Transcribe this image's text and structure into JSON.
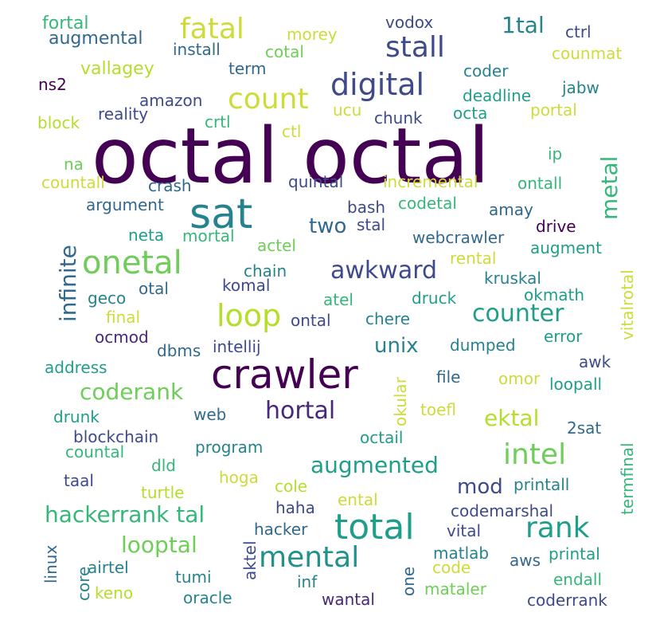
{
  "wordcloud": {
    "background": "#ffffff",
    "palette": [
      "#440154",
      "#482878",
      "#3e4a89",
      "#31688e",
      "#26828e",
      "#1f9e89",
      "#35b779",
      "#6ece58",
      "#b5de2b",
      "#fde725"
    ],
    "words": [
      {
        "text": "octal octal",
        "color": "#440154"
      },
      {
        "text": "crawler",
        "color": "#440154"
      },
      {
        "text": "sat",
        "color": "#26828e"
      },
      {
        "text": "total",
        "color": "#1f9e89"
      },
      {
        "text": "onetal",
        "color": "#6ece58"
      },
      {
        "text": "digital",
        "color": "#3e4a89"
      },
      {
        "text": "count",
        "color": "#cddc39"
      },
      {
        "text": "stall",
        "color": "#3e4a89"
      },
      {
        "text": "fatal",
        "color": "#cddc39"
      },
      {
        "text": "loop",
        "color": "#b5de2b"
      },
      {
        "text": "mental",
        "color": "#21918c"
      },
      {
        "text": "rank",
        "color": "#1f9e89"
      },
      {
        "text": "intel",
        "color": "#6ece58"
      },
      {
        "text": "infinite",
        "color": "#31688e"
      },
      {
        "text": "metal",
        "color": "#35b779"
      },
      {
        "text": "awkward",
        "color": "#3e4a89"
      },
      {
        "text": "hackerrank tal",
        "color": "#35b779"
      },
      {
        "text": "augmented",
        "color": "#1f9e89"
      },
      {
        "text": "looptal",
        "color": "#6ece58"
      },
      {
        "text": "counter",
        "color": "#1f9e89"
      },
      {
        "text": "hortal",
        "color": "#482878"
      },
      {
        "text": "coderank",
        "color": "#6ece58"
      },
      {
        "text": "ektal",
        "color": "#b5de2b"
      },
      {
        "text": "unix",
        "color": "#26828e"
      },
      {
        "text": "two",
        "color": "#31688e"
      },
      {
        "text": "1tal",
        "color": "#26828e"
      },
      {
        "text": "mod",
        "color": "#3e4a89"
      },
      {
        "text": "fortal",
        "color": "#35b779"
      },
      {
        "text": "augmental",
        "color": "#31688e"
      },
      {
        "text": "install",
        "color": "#31688e"
      },
      {
        "text": "morey",
        "color": "#cddc39"
      },
      {
        "text": "cotal",
        "color": "#6ece58"
      },
      {
        "text": "vodox",
        "color": "#3e4a89"
      },
      {
        "text": "ctrl",
        "color": "#3e4a89"
      },
      {
        "text": "counmat",
        "color": "#cddc39"
      },
      {
        "text": "vallagey",
        "color": "#b5de2b"
      },
      {
        "text": "term",
        "color": "#31688e"
      },
      {
        "text": "coder",
        "color": "#26828e"
      },
      {
        "text": "ns2",
        "color": "#440154"
      },
      {
        "text": "jabw",
        "color": "#26828e"
      },
      {
        "text": "deadline",
        "color": "#1f9e89"
      },
      {
        "text": "amazon",
        "color": "#3e4a89"
      },
      {
        "text": "ucu",
        "color": "#cddc39"
      },
      {
        "text": "block",
        "color": "#b5de2b"
      },
      {
        "text": "reality",
        "color": "#3e4a89"
      },
      {
        "text": "crtl",
        "color": "#35b779"
      },
      {
        "text": "chunk",
        "color": "#3e4a89"
      },
      {
        "text": "octa",
        "color": "#1f9e89"
      },
      {
        "text": "portal",
        "color": "#cddc39"
      },
      {
        "text": "ctl",
        "color": "#cddc39"
      },
      {
        "text": "na",
        "color": "#6ece58"
      },
      {
        "text": "ip",
        "color": "#35b779"
      },
      {
        "text": "countall",
        "color": "#cddc39"
      },
      {
        "text": "crash",
        "color": "#31688e"
      },
      {
        "text": "quintal",
        "color": "#3e4a89"
      },
      {
        "text": "incremental",
        "color": "#cddc39"
      },
      {
        "text": "ontall",
        "color": "#35b779"
      },
      {
        "text": "argument",
        "color": "#31688e"
      },
      {
        "text": "bash",
        "color": "#3e4a89"
      },
      {
        "text": "codetal",
        "color": "#35b779"
      },
      {
        "text": "amay",
        "color": "#31688e"
      },
      {
        "text": "neta",
        "color": "#1f9e89"
      },
      {
        "text": "mortal",
        "color": "#35b779"
      },
      {
        "text": "stal",
        "color": "#3e4a89"
      },
      {
        "text": "actel",
        "color": "#6ece58"
      },
      {
        "text": "webcrawler",
        "color": "#31688e"
      },
      {
        "text": "drive",
        "color": "#440154"
      },
      {
        "text": "augment",
        "color": "#1f9e89"
      },
      {
        "text": "rental",
        "color": "#cddc39"
      },
      {
        "text": "chain",
        "color": "#26828e"
      },
      {
        "text": "otal",
        "color": "#31688e"
      },
      {
        "text": "komal",
        "color": "#3e4a89"
      },
      {
        "text": "kruskal",
        "color": "#26828e"
      },
      {
        "text": "geco",
        "color": "#26828e"
      },
      {
        "text": "atel",
        "color": "#35b779"
      },
      {
        "text": "druck",
        "color": "#1f9e89"
      },
      {
        "text": "okmath",
        "color": "#1f9e89"
      },
      {
        "text": "final",
        "color": "#cddc39"
      },
      {
        "text": "ontal",
        "color": "#3e4a89"
      },
      {
        "text": "chere",
        "color": "#26828e"
      },
      {
        "text": "ocmod",
        "color": "#482878"
      },
      {
        "text": "dbms",
        "color": "#31688e"
      },
      {
        "text": "intellij",
        "color": "#3e4a89"
      },
      {
        "text": "dumped",
        "color": "#26828e"
      },
      {
        "text": "error",
        "color": "#1f9e89"
      },
      {
        "text": "vitalrotal",
        "color": "#cddc39"
      },
      {
        "text": "address",
        "color": "#1f9e89"
      },
      {
        "text": "okular",
        "color": "#cddc39"
      },
      {
        "text": "file",
        "color": "#31688e"
      },
      {
        "text": "omor",
        "color": "#cddc39"
      },
      {
        "text": "awk",
        "color": "#3e4a89"
      },
      {
        "text": "loopall",
        "color": "#1f9e89"
      },
      {
        "text": "drunk",
        "color": "#1f9e89"
      },
      {
        "text": "web",
        "color": "#31688e"
      },
      {
        "text": "toefl",
        "color": "#cddc39"
      },
      {
        "text": "2sat",
        "color": "#31688e"
      },
      {
        "text": "termfinal",
        "color": "#35b779"
      },
      {
        "text": "blockchain",
        "color": "#3e4a89"
      },
      {
        "text": "program",
        "color": "#26828e"
      },
      {
        "text": "octail",
        "color": "#1f9e89"
      },
      {
        "text": "countal",
        "color": "#35b779"
      },
      {
        "text": "dld",
        "color": "#35b779"
      },
      {
        "text": "taal",
        "color": "#3e4a89"
      },
      {
        "text": "hoga",
        "color": "#cddc39"
      },
      {
        "text": "turtle",
        "color": "#b5de2b"
      },
      {
        "text": "cole",
        "color": "#b5de2b"
      },
      {
        "text": "printall",
        "color": "#26828e"
      },
      {
        "text": "ental",
        "color": "#cddc39"
      },
      {
        "text": "haha",
        "color": "#3e4a89"
      },
      {
        "text": "codemarshal",
        "color": "#3e4a89"
      },
      {
        "text": "linux",
        "color": "#31688e"
      },
      {
        "text": "hacker",
        "color": "#31688e"
      },
      {
        "text": "vital",
        "color": "#3e4a89"
      },
      {
        "text": "aktel",
        "color": "#3e4a89"
      },
      {
        "text": "matlab",
        "color": "#26828e"
      },
      {
        "text": "aws",
        "color": "#31688e"
      },
      {
        "text": "printal",
        "color": "#1f9e89"
      },
      {
        "text": "core",
        "color": "#26828e"
      },
      {
        "text": "airtel",
        "color": "#26828e"
      },
      {
        "text": "code",
        "color": "#cddc39"
      },
      {
        "text": "one",
        "color": "#31688e"
      },
      {
        "text": "tumi",
        "color": "#26828e"
      },
      {
        "text": "inf",
        "color": "#26828e"
      },
      {
        "text": "endall",
        "color": "#35b779"
      },
      {
        "text": "keno",
        "color": "#b5de2b"
      },
      {
        "text": "mataler",
        "color": "#6ece58"
      },
      {
        "text": "oracle",
        "color": "#26828e"
      },
      {
        "text": "wantal",
        "color": "#482878"
      },
      {
        "text": "coderrank",
        "color": "#3e4a89"
      }
    ]
  }
}
